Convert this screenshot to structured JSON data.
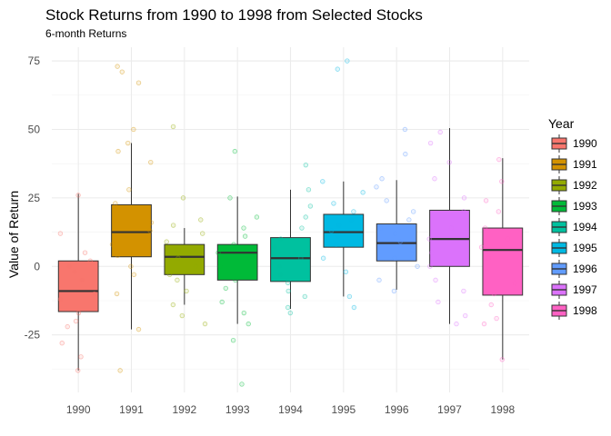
{
  "chart_data": {
    "type": "boxplot",
    "title": "Stock Returns from 1990 to 1998 from Selected Stocks",
    "subtitle": "6-month Returns",
    "xlabel": "",
    "ylabel": "Value of Return",
    "ylim": [
      -46,
      80
    ],
    "yticks": [
      -25,
      0,
      25,
      50,
      75
    ],
    "grid": true,
    "legend": {
      "title": "Year",
      "position": "right"
    },
    "categories": [
      "1990",
      "1991",
      "1992",
      "1993",
      "1994",
      "1995",
      "1996",
      "1997",
      "1998"
    ],
    "colors": [
      "#F8766D",
      "#D39200",
      "#93AA00",
      "#00BA38",
      "#00C19F",
      "#00B9E3",
      "#619CFF",
      "#DB72FB",
      "#FF61C3"
    ],
    "boxes": [
      {
        "name": "1990",
        "min": -38,
        "q1": -16.5,
        "median": -9,
        "q3": 2,
        "max": 26.5
      },
      {
        "name": "1991",
        "min": -23,
        "q1": 3.5,
        "median": 12.5,
        "q3": 22.5,
        "max": 45
      },
      {
        "name": "1992",
        "min": -14,
        "q1": -3,
        "median": 3.5,
        "q3": 8,
        "max": 14
      },
      {
        "name": "1993",
        "min": -21,
        "q1": -5,
        "median": 5,
        "q3": 8,
        "max": 25.5
      },
      {
        "name": "1994",
        "min": -15.5,
        "q1": -5.5,
        "median": 3,
        "q3": 10.5,
        "max": 28
      },
      {
        "name": "1995",
        "min": -11,
        "q1": 7,
        "median": 12.5,
        "q3": 19,
        "max": 31
      },
      {
        "name": "1996",
        "min": -8.5,
        "q1": 2,
        "median": 8.5,
        "q3": 15.5,
        "max": 31.5
      },
      {
        "name": "1997",
        "min": -21,
        "q1": 0,
        "median": 10,
        "q3": 20.5,
        "max": 50.5
      },
      {
        "name": "1998",
        "min": -34,
        "q1": -10.5,
        "median": 6,
        "q3": 14,
        "max": 39.5
      }
    ],
    "points": [
      {
        "name": "1990",
        "values": [
          -38,
          -33,
          -28,
          -22,
          -20,
          -17,
          -12,
          -10,
          -5,
          -2,
          0,
          2,
          5,
          12,
          26
        ]
      },
      {
        "name": "1991",
        "values": [
          -38,
          -23,
          -10,
          -3,
          0,
          4,
          8,
          13,
          16,
          23,
          28,
          38,
          42,
          45,
          50,
          67,
          71,
          73
        ]
      },
      {
        "name": "1992",
        "values": [
          -21,
          -18,
          -14,
          -9,
          -5,
          -3,
          0,
          3,
          6,
          9,
          12,
          15,
          17,
          25,
          51
        ]
      },
      {
        "name": "1993",
        "values": [
          -43,
          -27,
          -21,
          -17,
          -13,
          -8,
          -5,
          0,
          5,
          8,
          11,
          14,
          18,
          25,
          42
        ]
      },
      {
        "name": "1994",
        "values": [
          -17,
          -15,
          -11,
          -9,
          -6,
          -3,
          0,
          3,
          7,
          10,
          14,
          18,
          22,
          28,
          37
        ]
      },
      {
        "name": "1995",
        "values": [
          -15,
          -11,
          -2,
          3,
          8,
          11,
          13,
          15,
          17,
          20,
          23,
          27,
          31,
          72,
          75
        ]
      },
      {
        "name": "1996",
        "values": [
          -9,
          -5,
          0,
          3,
          6,
          9,
          12,
          14,
          17,
          20,
          24,
          29,
          32,
          41,
          50
        ]
      },
      {
        "name": "1997",
        "values": [
          -21,
          -18,
          -13,
          -9,
          -5,
          0,
          5,
          10,
          14,
          20,
          25,
          32,
          38,
          45,
          49
        ]
      },
      {
        "name": "1998",
        "values": [
          -34,
          -21,
          -19,
          -14,
          -10,
          -6,
          -2,
          3,
          7,
          10,
          14,
          20,
          24,
          31,
          39
        ]
      }
    ]
  }
}
